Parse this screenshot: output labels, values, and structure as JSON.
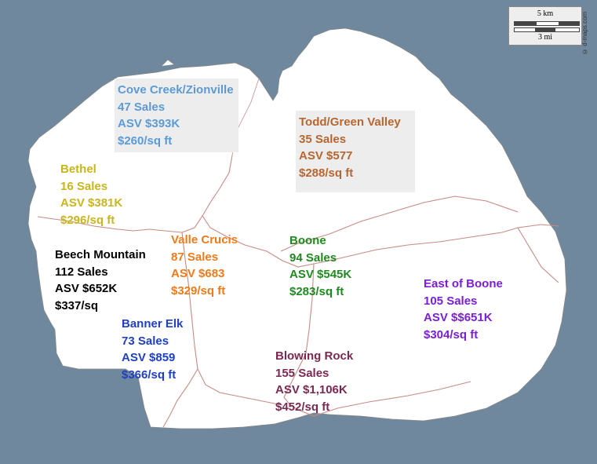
{
  "map": {
    "water_color": "#6f889d",
    "land_color": "#ffffff",
    "road_color": "#c98a84",
    "scale_bar": {
      "km_label": "5 km",
      "mi_label": "3 mi"
    },
    "credit": "© d-maps.com"
  },
  "regions": [
    {
      "id": "cove-creek",
      "name": "Cove Creek/Zionville",
      "sales": "47 Sales",
      "asv": "ASV $393K",
      "per_sqft": "$260/sq ft",
      "color": "#5b9bd5",
      "boxed": true
    },
    {
      "id": "todd",
      "name": "Todd/Green Valley",
      "sales": "35 Sales",
      "asv": "ASV $577",
      "per_sqft": "$288/sq ft",
      "color": "#b8662f",
      "boxed": true
    },
    {
      "id": "bethel",
      "name": "Bethel",
      "sales": "16 Sales",
      "asv": "ASV $381K",
      "per_sqft": "$296/sq ft",
      "color": "#c9b51e",
      "boxed": false
    },
    {
      "id": "beech-mountain",
      "name": "Beech Mountain",
      "sales": "112 Sales",
      "asv": "ASV $652K",
      "per_sqft": "$337/sq",
      "color": "#000000",
      "boxed": false,
      "white_bg": true
    },
    {
      "id": "valle-crucis",
      "name": "Valle Crucis",
      "sales": "87 Sales",
      "asv": "ASV $683",
      "per_sqft": "$329/sq ft",
      "color": "#f07a1a",
      "boxed": false
    },
    {
      "id": "boone",
      "name": "Boone",
      "sales": "94 Sales",
      "asv": "ASV $545K",
      "per_sqft": "$283/sq ft",
      "color": "#1f8a1f",
      "boxed": false
    },
    {
      "id": "east-of-boone",
      "name": "East of Boone",
      "sales": "105 Sales",
      "asv": "ASV $$651K",
      "per_sqft": "$304/sq ft",
      "color": "#7b1fd2",
      "boxed": false
    },
    {
      "id": "banner-elk",
      "name": "Banner Elk",
      "sales": "73 Sales",
      "asv": "ASV $859",
      "per_sqft": "$366/sq ft",
      "color": "#1f3fc4",
      "boxed": false
    },
    {
      "id": "blowing-rock",
      "name": "Blowing Rock",
      "sales": "155 Sales",
      "asv": "ASV $1,106K",
      "per_sqft": "$452/sq ft",
      "color": "#7a2a52",
      "boxed": false
    }
  ]
}
